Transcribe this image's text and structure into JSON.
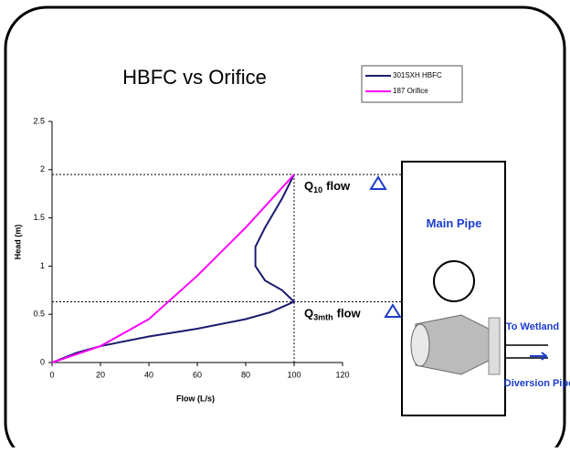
{
  "chart_data": {
    "type": "line",
    "title": "HBFC vs Orifice",
    "x_label": "Flow (L/s)",
    "y_label": "Head (m)",
    "series": [
      {
        "name": "301SXH HBFC",
        "color": "#1a1a6e",
        "x": [
          0,
          10,
          20,
          40,
          60,
          80,
          90,
          100,
          95,
          88,
          84,
          84,
          88,
          95,
          100
        ],
        "values": [
          0,
          0.1,
          0.17,
          0.27,
          0.35,
          0.45,
          0.52,
          0.63,
          0.75,
          0.85,
          1.0,
          1.2,
          1.4,
          1.7,
          1.95
        ]
      },
      {
        "name": "187 Orifice",
        "color": "#ff00ff",
        "x": [
          0,
          20,
          40,
          60,
          80,
          100
        ],
        "values": [
          0,
          0.17,
          0.45,
          0.9,
          1.4,
          1.95
        ]
      }
    ],
    "xlim": [
      0,
      120
    ],
    "xticks": [
      0,
      20,
      40,
      60,
      80,
      100,
      120
    ],
    "ylim": [
      0,
      2.5
    ],
    "yticks": [
      0,
      0.5,
      1,
      1.5,
      2,
      2.5
    ],
    "hlines": [
      1.95,
      0.63
    ],
    "vline": 100,
    "annotations": [
      {
        "main": "Q",
        "sub": "10",
        "rest": "flow"
      },
      {
        "main": "Q",
        "sub": "3mth",
        "rest": "flow"
      }
    ]
  },
  "diagram": {
    "main_pipe": "Main Pipe",
    "outlet": "To Wetland",
    "diversion": "Diversion Pipe"
  }
}
